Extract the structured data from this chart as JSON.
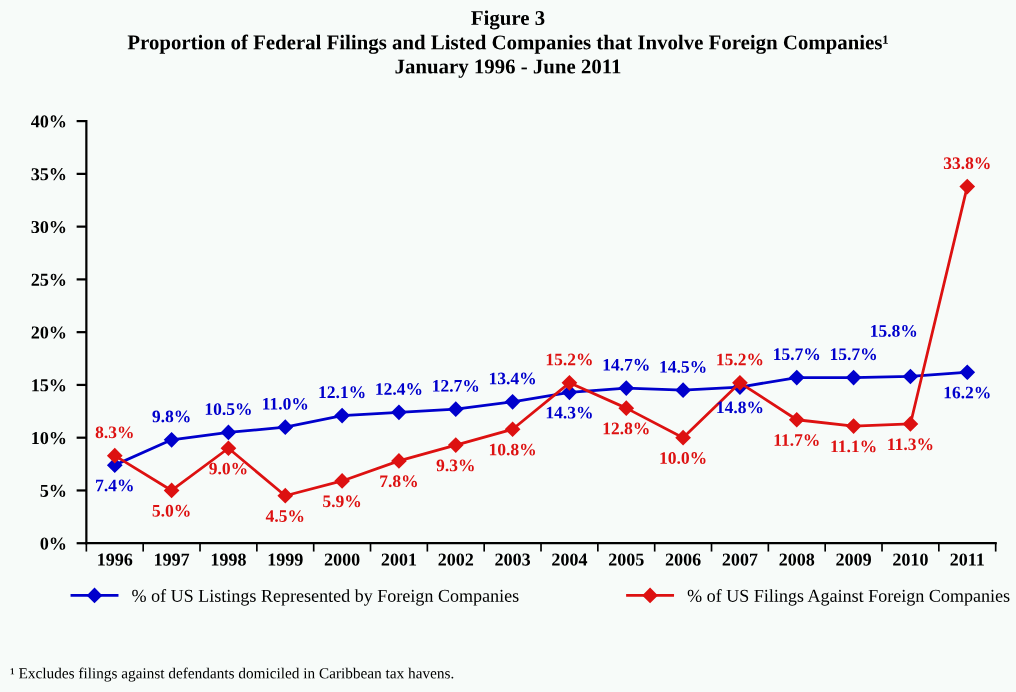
{
  "chart_data": {
    "type": "line",
    "title": "Figure 3\nProportion of Federal Filings and Listed Companies that Involve Foreign Companies¹\nJanuary 1996 - June 2011",
    "categories": [
      "1996",
      "1997",
      "1998",
      "1999",
      "2000",
      "2001",
      "2002",
      "2003",
      "2004",
      "2005",
      "2006",
      "2007",
      "2008",
      "2009",
      "2010",
      "2011"
    ],
    "series": [
      {
        "name": "% of US Listings Represented by Foreign Companies",
        "color": "#0000cc",
        "values": [
          7.4,
          9.8,
          10.5,
          11.0,
          12.1,
          12.4,
          12.7,
          13.4,
          14.3,
          14.7,
          14.5,
          14.8,
          15.7,
          15.7,
          15.8,
          16.2
        ],
        "value_labels": [
          "7.4%",
          "9.8%",
          "10.5%",
          "11.0%",
          "12.1%",
          "12.4%",
          "12.7%",
          "13.4%",
          "14.3%",
          "14.7%",
          "14.5%",
          "14.8%",
          "15.7%",
          "15.7%",
          "15.8%",
          "16.2%"
        ]
      },
      {
        "name": "% of US Filings Against Foreign Companies",
        "color": "#dd1111",
        "values": [
          8.3,
          5.0,
          9.0,
          4.5,
          5.9,
          7.8,
          9.3,
          10.8,
          15.2,
          12.8,
          10.0,
          15.2,
          11.7,
          11.1,
          11.3,
          33.8
        ],
        "value_labels": [
          "8.3%",
          "5.0%",
          "9.0%",
          "4.5%",
          "5.9%",
          "7.8%",
          "9.3%",
          "10.8%",
          "15.2%",
          "12.8%",
          "10.0%",
          "15.2%",
          "11.7%",
          "11.1%",
          "11.3%",
          "33.8%"
        ]
      }
    ],
    "ylim": [
      0,
      40
    ],
    "yticks": [
      {
        "value": 0,
        "label": "0%"
      },
      {
        "value": 5,
        "label": "5%"
      },
      {
        "value": 10,
        "label": "10%"
      },
      {
        "value": 15,
        "label": "15%"
      },
      {
        "value": 20,
        "label": "20%"
      },
      {
        "value": 25,
        "label": "25%"
      },
      {
        "value": 30,
        "label": "30%"
      },
      {
        "value": 35,
        "label": "35%"
      },
      {
        "value": 40,
        "label": "40%"
      }
    ],
    "marker": "diamond",
    "line_style": "solid",
    "grid": false,
    "legend": "bottom",
    "annotations": [
      "¹ Excludes filings against defendants domiciled in Caribbean tax havens."
    ]
  }
}
